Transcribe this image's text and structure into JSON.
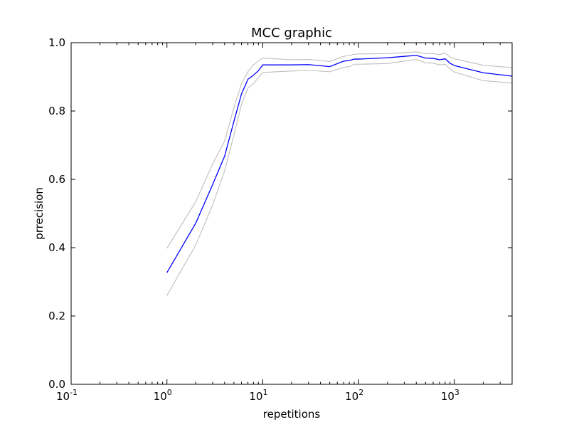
{
  "chart_data": {
    "type": "line",
    "title": "MCC graphic",
    "xlabel": "repetitions",
    "ylabel": "prrecision",
    "xscale": "log",
    "xlim": [
      0.1,
      4000
    ],
    "ylim": [
      0.0,
      1.0
    ],
    "grid": false,
    "xticks": [
      {
        "value": 0.1,
        "base": "10",
        "exp": "-1"
      },
      {
        "value": 1,
        "base": "10",
        "exp": "0"
      },
      {
        "value": 10,
        "base": "10",
        "exp": "1"
      },
      {
        "value": 100,
        "base": "10",
        "exp": "2"
      },
      {
        "value": 1000,
        "base": "10",
        "exp": "3"
      }
    ],
    "yticks": [
      {
        "value": 0.0,
        "label": "0.0"
      },
      {
        "value": 0.2,
        "label": "0.2"
      },
      {
        "value": 0.4,
        "label": "0.4"
      },
      {
        "value": 0.6,
        "label": "0.6"
      },
      {
        "value": 0.8,
        "label": "0.8"
      },
      {
        "value": 1.0,
        "label": "1.0"
      }
    ],
    "series": [
      {
        "role": "upper",
        "color": "#bfbfbf",
        "x": [
          1,
          2,
          3,
          4,
          5,
          6,
          7,
          8,
          9,
          10,
          20,
          30,
          50,
          70,
          80,
          90,
          100,
          200,
          300,
          400,
          500,
          600,
          700,
          800,
          900,
          1000,
          2000,
          4000
        ],
        "y": [
          0.398,
          0.535,
          0.645,
          0.712,
          0.81,
          0.88,
          0.915,
          0.935,
          0.947,
          0.955,
          0.95,
          0.951,
          0.945,
          0.96,
          0.963,
          0.966,
          0.967,
          0.968,
          0.971,
          0.973,
          0.968,
          0.968,
          0.965,
          0.97,
          0.958,
          0.953,
          0.934,
          0.927
        ]
      },
      {
        "role": "mean",
        "color": "#0000ff",
        "x": [
          1,
          2,
          3,
          4,
          5,
          6,
          7,
          8,
          9,
          10,
          20,
          30,
          50,
          70,
          80,
          90,
          100,
          200,
          300,
          400,
          500,
          600,
          700,
          800,
          900,
          1000,
          2000,
          4000
        ],
        "y": [
          0.327,
          0.472,
          0.585,
          0.668,
          0.77,
          0.85,
          0.893,
          0.905,
          0.918,
          0.935,
          0.935,
          0.936,
          0.93,
          0.946,
          0.948,
          0.952,
          0.952,
          0.956,
          0.96,
          0.963,
          0.955,
          0.954,
          0.95,
          0.953,
          0.94,
          0.933,
          0.912,
          0.902
        ]
      },
      {
        "role": "lower",
        "color": "#bfbfbf",
        "x": [
          1,
          2,
          3,
          4,
          5,
          6,
          7,
          8,
          9,
          10,
          20,
          30,
          50,
          70,
          80,
          90,
          100,
          200,
          300,
          400,
          500,
          600,
          700,
          800,
          900,
          1000,
          2000,
          4000
        ],
        "y": [
          0.26,
          0.408,
          0.525,
          0.625,
          0.73,
          0.82,
          0.868,
          0.88,
          0.898,
          0.913,
          0.917,
          0.919,
          0.915,
          0.928,
          0.93,
          0.937,
          0.937,
          0.939,
          0.946,
          0.951,
          0.941,
          0.94,
          0.935,
          0.937,
          0.924,
          0.914,
          0.889,
          0.882
        ]
      }
    ]
  }
}
